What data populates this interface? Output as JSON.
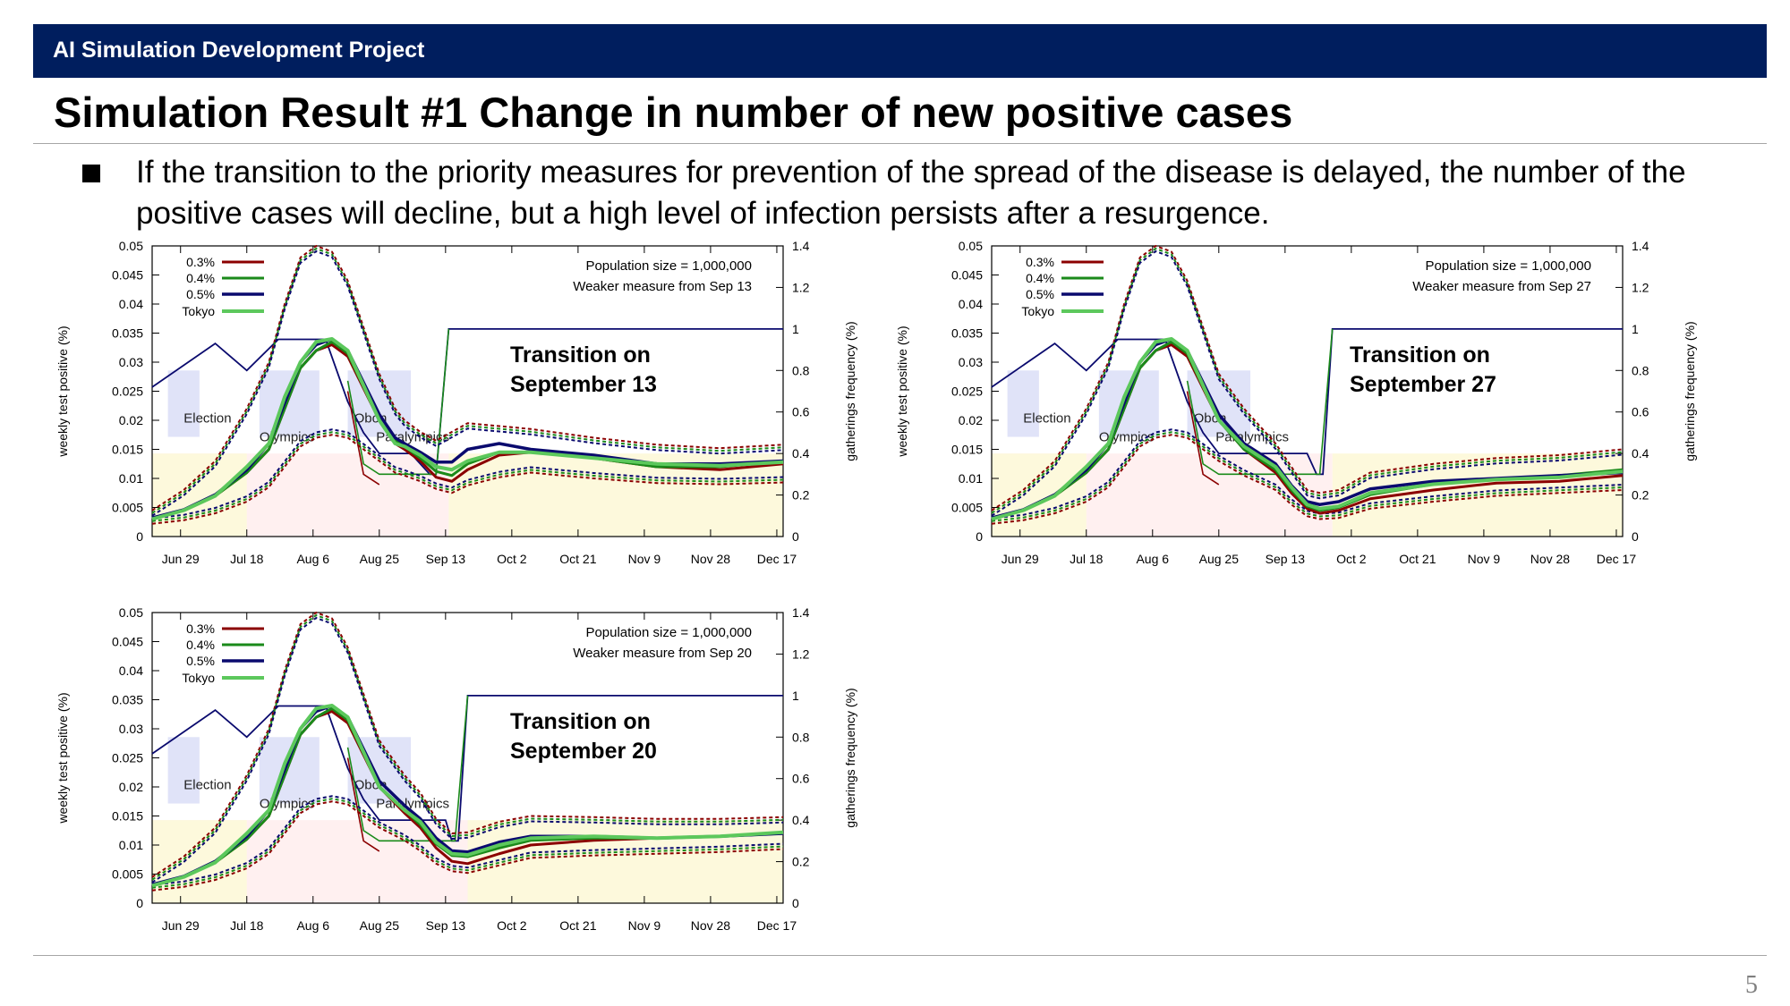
{
  "header": {
    "project": "AI Simulation Development Project"
  },
  "title": "Simulation Result #1 Change in number of new positive cases",
  "bullet": "If the transition to the priority measures for prevention of the spread of the disease is delayed, the number of the positive cases will decline, but a high level of infection persists after a resurgence.",
  "page_number": "5",
  "colors": {
    "banner": "#001e5e",
    "s03": "#8b0000",
    "s04": "#1a8a1a",
    "s05": "#0a0a6e",
    "tokyo": "#5cc85c",
    "frequency": "#0a0a6e"
  },
  "chart_data": [
    {
      "type": "line",
      "title": "Transition on September 13",
      "title_lines": [
        "Transition on",
        "September 13"
      ],
      "info": [
        "Population size = 1,000,000",
        "Weaker measure from Sep 13"
      ],
      "xlabel": "",
      "ylabel": "weekly test positive (%)",
      "y2label": "gatherings frequency (%)",
      "ylim": [
        0,
        0.05
      ],
      "y2lim": [
        0,
        1.4
      ],
      "yticks": [
        "0",
        "0.005",
        "0.01",
        "0.015",
        "0.02",
        "0.025",
        "0.03",
        "0.035",
        "0.04",
        "0.045",
        "0.05"
      ],
      "y2ticks": [
        "0",
        "0.2",
        "0.4",
        "0.6",
        "0.8",
        "1",
        "1.2",
        "1.4"
      ],
      "xticks": [
        "Jun 29",
        "Jul 18",
        "Aug 6",
        "Aug 25",
        "Sep 13",
        "Oct 2",
        "Oct 21",
        "Nov 9",
        "Nov 28",
        "Dec 17"
      ],
      "legend": [
        "0.3%",
        "0.4%",
        "0.5%",
        "Tokyo"
      ],
      "legend_position": "top-left",
      "events": [
        "Election",
        "Olympics",
        "Obon",
        "Paralympics"
      ],
      "x": [
        0,
        10,
        20,
        30,
        37,
        42,
        47,
        52,
        57,
        62,
        72,
        77,
        80,
        85,
        90,
        95,
        100,
        110,
        120,
        140,
        160,
        180,
        200
      ],
      "series": [
        {
          "name": "0.3%",
          "values": [
            0.0032,
            0.0045,
            0.007,
            0.011,
            0.015,
            0.022,
            0.029,
            0.032,
            0.033,
            0.031,
            0.02,
            0.016,
            0.015,
            0.013,
            0.0102,
            0.0095,
            0.0115,
            0.014,
            0.0145,
            0.0135,
            0.012,
            0.0115,
            0.0125
          ]
        },
        {
          "name": "0.4%",
          "values": [
            0.0032,
            0.0045,
            0.007,
            0.011,
            0.015,
            0.022,
            0.029,
            0.032,
            0.0335,
            0.0315,
            0.02,
            0.0165,
            0.0155,
            0.0135,
            0.0112,
            0.0105,
            0.0125,
            0.0145,
            0.0145,
            0.0135,
            0.012,
            0.012,
            0.013
          ]
        },
        {
          "name": "0.5%",
          "values": [
            0.0032,
            0.0046,
            0.0072,
            0.0115,
            0.016,
            0.023,
            0.03,
            0.033,
            0.034,
            0.032,
            0.021,
            0.017,
            0.016,
            0.0145,
            0.0128,
            0.0128,
            0.015,
            0.016,
            0.015,
            0.014,
            0.0125,
            0.0125,
            0.013
          ]
        },
        {
          "name": "Tokyo",
          "values": [
            0.003,
            0.0045,
            0.007,
            0.012,
            0.016,
            0.024,
            0.03,
            0.0335,
            0.034,
            0.032,
            0.02,
            0.016,
            0.0155,
            0.014,
            0.012,
            0.0115,
            0.013,
            0.0145,
            0.0145,
            0.0135,
            0.0125,
            0.0122,
            0.0128
          ]
        }
      ],
      "upper_band": [
        0.0045,
        0.008,
        0.013,
        0.022,
        0.03,
        0.04,
        0.048,
        0.05,
        0.049,
        0.044,
        0.028,
        0.022,
        0.02,
        0.018,
        0.0165,
        0.018,
        0.0195,
        0.019,
        0.0185,
        0.017,
        0.0158,
        0.0152,
        0.0158
      ],
      "lower_band": [
        0.0022,
        0.0028,
        0.004,
        0.006,
        0.0085,
        0.012,
        0.0155,
        0.017,
        0.0175,
        0.017,
        0.013,
        0.011,
        0.0105,
        0.0095,
        0.0082,
        0.0075,
        0.0088,
        0.0102,
        0.011,
        0.01,
        0.0092,
        0.009,
        0.0093
      ],
      "frequency": {
        "name": "gatherings frequency",
        "x": [
          0,
          20,
          30,
          40,
          48,
          55,
          62,
          67,
          72,
          82,
          88,
          89,
          90,
          94,
          100,
          200
        ],
        "values": [
          0.72,
          0.93,
          0.8,
          0.95,
          0.95,
          0.95,
          0.65,
          0.5,
          0.4,
          0.4,
          0.3,
          0.3,
          0.3,
          1.0,
          1.0,
          1.0
        ]
      },
      "frequency_lower": {
        "x": [
          62,
          67,
          72,
          88,
          90,
          94
        ],
        "values": [
          0.75,
          0.35,
          0.3,
          0.3,
          0.3,
          1.0
        ]
      }
    },
    {
      "type": "line",
      "title": "Transition on September 27",
      "title_lines": [
        "Transition on",
        "September 27"
      ],
      "info": [
        "Population size = 1,000,000",
        "Weaker measure from Sep 27"
      ],
      "xlabel": "",
      "ylabel": "weekly test positive (%)",
      "y2label": "gatherings frequency (%)",
      "ylim": [
        0,
        0.05
      ],
      "y2lim": [
        0,
        1.4
      ],
      "yticks": [
        "0",
        "0.005",
        "0.01",
        "0.015",
        "0.02",
        "0.025",
        "0.03",
        "0.035",
        "0.04",
        "0.045",
        "0.05"
      ],
      "y2ticks": [
        "0",
        "0.2",
        "0.4",
        "0.6",
        "0.8",
        "1",
        "1.2",
        "1.4"
      ],
      "xticks": [
        "Jun 29",
        "Jul 18",
        "Aug 6",
        "Aug 25",
        "Sep 13",
        "Oct 2",
        "Oct 21",
        "Nov 9",
        "Nov 28",
        "Dec 17"
      ],
      "legend": [
        "0.3%",
        "0.4%",
        "0.5%",
        "Tokyo"
      ],
      "legend_position": "top-left",
      "events": [
        "Election",
        "Olympics",
        "Obon",
        "Paralympics"
      ],
      "x": [
        0,
        10,
        20,
        30,
        37,
        42,
        47,
        52,
        57,
        62,
        72,
        80,
        90,
        95,
        100,
        104,
        110,
        120,
        140,
        160,
        180,
        200
      ],
      "series": [
        {
          "name": "0.3%",
          "values": [
            0.0032,
            0.0045,
            0.007,
            0.011,
            0.015,
            0.022,
            0.029,
            0.032,
            0.033,
            0.031,
            0.02,
            0.015,
            0.011,
            0.0075,
            0.0048,
            0.004,
            0.0045,
            0.0065,
            0.008,
            0.0092,
            0.0095,
            0.0105
          ]
        },
        {
          "name": "0.4%",
          "values": [
            0.0032,
            0.0045,
            0.007,
            0.011,
            0.015,
            0.022,
            0.029,
            0.032,
            0.0335,
            0.0315,
            0.02,
            0.015,
            0.0115,
            0.008,
            0.0052,
            0.0045,
            0.005,
            0.0072,
            0.009,
            0.0098,
            0.0105,
            0.0115
          ]
        },
        {
          "name": "0.5%",
          "values": [
            0.0032,
            0.0046,
            0.0072,
            0.0115,
            0.016,
            0.023,
            0.03,
            0.033,
            0.034,
            0.032,
            0.021,
            0.016,
            0.0125,
            0.0088,
            0.006,
            0.0055,
            0.006,
            0.0082,
            0.0095,
            0.01,
            0.0105,
            0.011
          ]
        },
        {
          "name": "Tokyo",
          "values": [
            0.003,
            0.0045,
            0.007,
            0.012,
            0.016,
            0.024,
            0.03,
            0.0335,
            0.034,
            0.032,
            0.02,
            0.0155,
            0.012,
            0.0085,
            0.0055,
            0.0048,
            0.0052,
            0.0075,
            0.009,
            0.0098,
            0.0102,
            0.0112
          ]
        }
      ],
      "upper_band": [
        0.0045,
        0.008,
        0.013,
        0.022,
        0.03,
        0.04,
        0.048,
        0.05,
        0.049,
        0.044,
        0.028,
        0.022,
        0.016,
        0.012,
        0.008,
        0.0075,
        0.008,
        0.011,
        0.0125,
        0.0135,
        0.014,
        0.015
      ],
      "lower_band": [
        0.0022,
        0.0028,
        0.004,
        0.006,
        0.0085,
        0.012,
        0.0155,
        0.017,
        0.0175,
        0.017,
        0.013,
        0.0105,
        0.008,
        0.0055,
        0.0035,
        0.003,
        0.0032,
        0.0048,
        0.006,
        0.007,
        0.0075,
        0.008
      ],
      "frequency": {
        "name": "gatherings frequency",
        "x": [
          0,
          20,
          30,
          40,
          48,
          55,
          62,
          67,
          72,
          100,
          103,
          104,
          105,
          108,
          114,
          200
        ],
        "values": [
          0.72,
          0.93,
          0.8,
          0.95,
          0.95,
          0.95,
          0.65,
          0.5,
          0.4,
          0.4,
          0.3,
          0.3,
          0.3,
          1.0,
          1.0,
          1.0
        ]
      },
      "frequency_lower": {
        "x": [
          62,
          67,
          72,
          103,
          104,
          108
        ],
        "values": [
          0.75,
          0.35,
          0.3,
          0.3,
          0.3,
          1.0
        ]
      }
    },
    {
      "type": "line",
      "title": "Transition on September 20",
      "title_lines": [
        "Transition on",
        "September 20"
      ],
      "info": [
        "Population size = 1,000,000",
        "Weaker measure from Sep 20"
      ],
      "xlabel": "",
      "ylabel": "weekly test positive (%)",
      "y2label": "gatherings frequency (%)",
      "ylim": [
        0,
        0.05
      ],
      "y2lim": [
        0,
        1.4
      ],
      "yticks": [
        "0",
        "0.005",
        "0.01",
        "0.015",
        "0.02",
        "0.025",
        "0.03",
        "0.035",
        "0.04",
        "0.045",
        "0.05"
      ],
      "y2ticks": [
        "0",
        "0.2",
        "0.4",
        "0.6",
        "0.8",
        "1",
        "1.2",
        "1.4"
      ],
      "xticks": [
        "Jun 29",
        "Jul 18",
        "Aug 6",
        "Aug 25",
        "Sep 13",
        "Oct 2",
        "Oct 21",
        "Nov 9",
        "Nov 28",
        "Dec 17"
      ],
      "legend": [
        "0.3%",
        "0.4%",
        "0.5%",
        "Tokyo"
      ],
      "legend_position": "top-left",
      "events": [
        "Election",
        "Olympics",
        "Obon",
        "Paralympics"
      ],
      "x": [
        0,
        10,
        20,
        30,
        37,
        42,
        47,
        52,
        57,
        62,
        72,
        80,
        85,
        90,
        95,
        100,
        110,
        120,
        140,
        160,
        180,
        200
      ],
      "series": [
        {
          "name": "0.3%",
          "values": [
            0.0032,
            0.0045,
            0.007,
            0.011,
            0.015,
            0.022,
            0.029,
            0.032,
            0.033,
            0.031,
            0.02,
            0.0155,
            0.013,
            0.0095,
            0.0072,
            0.0068,
            0.0085,
            0.01,
            0.0108,
            0.0112,
            0.0115,
            0.012
          ]
        },
        {
          "name": "0.4%",
          "values": [
            0.0032,
            0.0045,
            0.007,
            0.011,
            0.015,
            0.022,
            0.029,
            0.032,
            0.0335,
            0.0315,
            0.02,
            0.016,
            0.0135,
            0.0102,
            0.0082,
            0.008,
            0.0095,
            0.0108,
            0.0112,
            0.0112,
            0.0115,
            0.0122
          ]
        },
        {
          "name": "0.5%",
          "values": [
            0.0032,
            0.0046,
            0.0072,
            0.0115,
            0.016,
            0.023,
            0.03,
            0.033,
            0.034,
            0.032,
            0.021,
            0.0168,
            0.0145,
            0.0112,
            0.009,
            0.0088,
            0.0105,
            0.0115,
            0.0115,
            0.0112,
            0.0115,
            0.012
          ]
        },
        {
          "name": "Tokyo",
          "values": [
            0.003,
            0.0045,
            0.007,
            0.012,
            0.016,
            0.024,
            0.03,
            0.0335,
            0.034,
            0.032,
            0.02,
            0.016,
            0.014,
            0.0105,
            0.0085,
            0.0083,
            0.01,
            0.0112,
            0.0115,
            0.0112,
            0.0115,
            0.0122
          ]
        }
      ],
      "upper_band": [
        0.0045,
        0.008,
        0.013,
        0.022,
        0.03,
        0.04,
        0.048,
        0.05,
        0.049,
        0.044,
        0.028,
        0.022,
        0.019,
        0.0145,
        0.012,
        0.0122,
        0.014,
        0.015,
        0.0148,
        0.0145,
        0.0145,
        0.0148
      ],
      "lower_band": [
        0.0022,
        0.0028,
        0.004,
        0.006,
        0.0085,
        0.012,
        0.0155,
        0.017,
        0.0175,
        0.017,
        0.013,
        0.0108,
        0.009,
        0.0068,
        0.0055,
        0.0052,
        0.0065,
        0.0078,
        0.0082,
        0.0085,
        0.0088,
        0.0093
      ],
      "frequency": {
        "name": "gatherings frequency",
        "x": [
          0,
          20,
          30,
          40,
          48,
          55,
          62,
          67,
          72,
          93,
          95,
          96,
          97,
          100,
          107,
          200
        ],
        "values": [
          0.72,
          0.93,
          0.8,
          0.95,
          0.95,
          0.95,
          0.65,
          0.5,
          0.4,
          0.4,
          0.3,
          0.3,
          0.3,
          1.0,
          1.0,
          1.0
        ]
      },
      "frequency_lower": {
        "x": [
          62,
          67,
          72,
          95,
          96,
          100
        ],
        "values": [
          0.75,
          0.35,
          0.3,
          0.3,
          0.3,
          1.0
        ]
      }
    }
  ]
}
